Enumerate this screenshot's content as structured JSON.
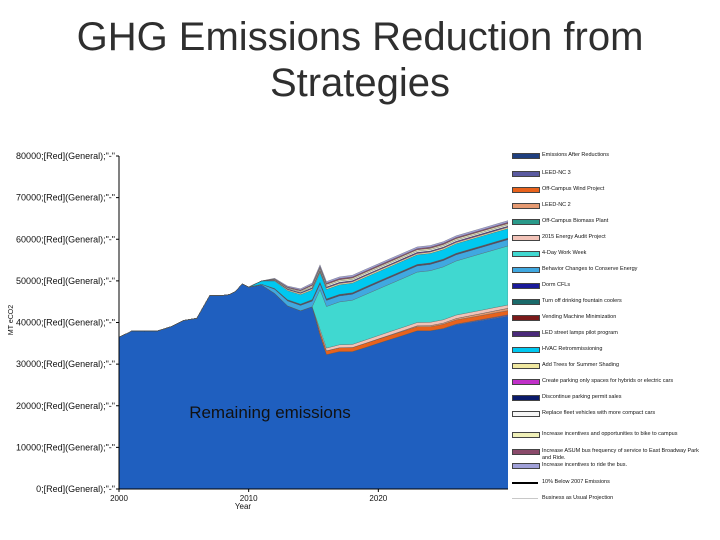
{
  "title": "GHG Emissions Reduction from Strategies",
  "annotation": "Remaining emissions",
  "chart_data": {
    "type": "area",
    "xlabel": "Year",
    "ylabel": "MT eCO2",
    "xlim": [
      2000,
      2030
    ],
    "ylim": [
      0,
      80000
    ],
    "x_ticks": [
      2000,
      2010,
      2020
    ],
    "y_ticks": [
      {
        "value": 0,
        "label": "0;[Red](General);\"-\""
      },
      {
        "value": 10000,
        "label": "10000;[Red](General);\"-\""
      },
      {
        "value": 20000,
        "label": "20000;[Red](General);\"-\""
      },
      {
        "value": 30000,
        "label": "30000;[Red](General);\"-\""
      },
      {
        "value": 40000,
        "label": "40000;[Red](General);\"-\""
      },
      {
        "value": 50000,
        "label": "50000;[Red](General);\"-\""
      },
      {
        "value": 60000,
        "label": "60000;[Red](General);\"-\""
      },
      {
        "value": 70000,
        "label": "70000;[Red](General);\"-\""
      },
      {
        "value": 80000,
        "label": "80000;[Red](General);\"-\""
      }
    ],
    "x": [
      2000,
      2000.7,
      2001,
      2002,
      2003,
      2004,
      2005,
      2006,
      2007,
      2008,
      2008.5,
      2009,
      2009.5,
      2010,
      2011,
      2012,
      2013,
      2014,
      2014.9,
      2015.5,
      2016,
      2017,
      2018,
      2019,
      2020,
      2021,
      2022,
      2023,
      2024,
      2025,
      2026,
      2027,
      2028,
      2029,
      2030
    ],
    "remaining": [
      36500,
      37500,
      38000,
      38000,
      38000,
      39000,
      40500,
      41000,
      46500,
      46500,
      46700,
      47500,
      49300,
      48500,
      49000,
      47000,
      44000,
      42800,
      43800,
      37000,
      32300,
      33000,
      33000,
      34000,
      35000,
      36000,
      37000,
      38000,
      38000,
      38500,
      39500,
      40000,
      40500,
      41000,
      41500
    ],
    "series": [
      {
        "name": "Emissions After Reductions",
        "color": "#1f5fbf",
        "swatch": "#1f3f7f",
        "values": null
      },
      {
        "name": "LEED-NC 3",
        "color": "#5a5aa0",
        "values": [
          0,
          0,
          0,
          0,
          0,
          0,
          0,
          0,
          0,
          0,
          0,
          0,
          0,
          0,
          0,
          0,
          0,
          0,
          0,
          0,
          0,
          0,
          0,
          0,
          0,
          0,
          0,
          0,
          0,
          60,
          120,
          180,
          240,
          300,
          360
        ]
      },
      {
        "name": "Off-Campus Wind Project",
        "color": "#e8621c",
        "values": [
          0,
          0,
          0,
          0,
          0,
          0,
          0,
          0,
          0,
          0,
          0,
          0,
          0,
          0,
          0,
          0,
          0,
          0,
          0,
          800,
          900,
          950,
          1000,
          1000,
          1000,
          1000,
          1000,
          1000,
          1000,
          1000,
          1000,
          1000,
          1000,
          1000,
          1000
        ]
      },
      {
        "name": "LEED-NC 2",
        "color": "#e59a72",
        "values": [
          0,
          0,
          0,
          0,
          0,
          0,
          0,
          0,
          0,
          0,
          0,
          0,
          0,
          0,
          0,
          0,
          0,
          0,
          0,
          0,
          0,
          0,
          0,
          0,
          50,
          100,
          150,
          200,
          250,
          300,
          350,
          400,
          450,
          500,
          550
        ]
      },
      {
        "name": "Off-Campus Biomass Plant",
        "color": "#2a9a8a",
        "values": [
          0,
          0,
          0,
          0,
          0,
          0,
          0,
          0,
          0,
          0,
          0,
          0,
          0,
          0,
          0,
          0,
          0,
          0,
          0,
          0,
          0,
          0,
          0,
          0,
          0,
          0,
          0,
          0,
          0,
          0,
          0,
          0,
          0,
          0,
          0
        ]
      },
      {
        "name": "2015 Energy Audit Project",
        "color": "#f2c3b8",
        "values": [
          0,
          0,
          0,
          0,
          0,
          0,
          0,
          0,
          0,
          0,
          0,
          0,
          0,
          0,
          0,
          0,
          0,
          0,
          0,
          600,
          650,
          700,
          750,
          800,
          800,
          800,
          800,
          800,
          800,
          800,
          800,
          800,
          800,
          800,
          800
        ]
      },
      {
        "name": "4-Day Work Week",
        "color": "#40d8d0",
        "values": [
          0,
          0,
          0,
          0,
          0,
          0,
          0,
          0,
          0,
          0,
          0,
          0,
          0,
          0,
          0,
          0,
          0,
          0,
          0,
          9500,
          10000,
          10300,
          10600,
          10900,
          11200,
          11500,
          11800,
          12100,
          12400,
          12700,
          13000,
          13300,
          13600,
          13900,
          14200
        ]
      },
      {
        "name": "Behavior Changes to Conserve Energy",
        "color": "#40a8e0",
        "values": [
          0,
          0,
          0,
          0,
          0,
          0,
          0,
          0,
          0,
          0,
          0,
          0,
          0,
          0,
          200,
          1000,
          1200,
          1300,
          1350,
          1400,
          1450,
          1450,
          1450,
          1500,
          1500,
          1500,
          1500,
          1500,
          1500,
          1500,
          1500,
          1500,
          1500,
          1500,
          1500
        ]
      },
      {
        "name": "Dorm CFLs",
        "color": "#1a1a9a",
        "values": [
          0,
          0,
          0,
          0,
          0,
          0,
          0,
          0,
          0,
          0,
          0,
          0,
          0,
          0,
          0,
          60,
          90,
          100,
          110,
          120,
          120,
          120,
          120,
          120,
          120,
          120,
          120,
          120,
          120,
          120,
          120,
          120,
          120,
          120,
          120
        ]
      },
      {
        "name": "Turn off drinking fountain coolers",
        "color": "#1a6a6a",
        "values": [
          0,
          0,
          0,
          0,
          0,
          0,
          0,
          0,
          0,
          0,
          0,
          0,
          0,
          0,
          0,
          40,
          60,
          70,
          80,
          80,
          80,
          80,
          80,
          80,
          80,
          80,
          80,
          80,
          80,
          80,
          80,
          80,
          80,
          80,
          80
        ]
      },
      {
        "name": "Vending Machine Minimization",
        "color": "#7a1a1a",
        "values": [
          0,
          0,
          0,
          0,
          0,
          0,
          0,
          0,
          0,
          0,
          0,
          0,
          0,
          0,
          0,
          40,
          60,
          70,
          80,
          80,
          80,
          80,
          80,
          80,
          80,
          80,
          80,
          80,
          80,
          80,
          80,
          80,
          80,
          80,
          80
        ]
      },
      {
        "name": "LED street lamps pilot program",
        "color": "#4a2a7a",
        "values": [
          0,
          0,
          0,
          0,
          0,
          0,
          0,
          0,
          0,
          0,
          0,
          0,
          0,
          0,
          0,
          40,
          60,
          70,
          80,
          80,
          80,
          80,
          80,
          80,
          80,
          80,
          80,
          80,
          80,
          80,
          80,
          80,
          80,
          80,
          80
        ]
      },
      {
        "name": "HVAC Retrommissioning",
        "color": "#00c8f0",
        "values": [
          0,
          0,
          0,
          0,
          0,
          0,
          0,
          0,
          0,
          0,
          0,
          0,
          0,
          0,
          800,
          1800,
          2200,
          2300,
          2300,
          2300,
          2300,
          2300,
          2300,
          2300,
          2300,
          2300,
          2300,
          2300,
          2300,
          2300,
          2300,
          2300,
          2300,
          2300,
          2300
        ]
      },
      {
        "name": "Add Trees for Summer Shading",
        "color": "#f0e8a0",
        "values": [
          0,
          0,
          0,
          0,
          0,
          0,
          0,
          0,
          0,
          0,
          0,
          0,
          0,
          0,
          0,
          100,
          200,
          250,
          300,
          300,
          300,
          300,
          300,
          300,
          300,
          300,
          300,
          300,
          300,
          300,
          300,
          300,
          300,
          300,
          300
        ]
      },
      {
        "name": "Create parking only spaces for hybrids or electric cars",
        "color": "#c030c8",
        "values": [
          0,
          0,
          0,
          0,
          0,
          0,
          0,
          0,
          0,
          0,
          0,
          0,
          0,
          0,
          0,
          60,
          100,
          120,
          140,
          150,
          150,
          150,
          150,
          150,
          150,
          150,
          150,
          150,
          150,
          150,
          150,
          150,
          150,
          150,
          150
        ]
      },
      {
        "name": "Discontinue parking permit sales",
        "color": "#0a1a6a",
        "values": [
          0,
          0,
          0,
          0,
          0,
          0,
          0,
          0,
          0,
          0,
          0,
          0,
          0,
          0,
          0,
          60,
          100,
          120,
          140,
          150,
          150,
          150,
          150,
          150,
          150,
          150,
          150,
          150,
          150,
          150,
          150,
          150,
          150,
          150,
          150
        ]
      },
      {
        "name": "Replace fleet vehicles with more compact cars",
        "color": "#f6f6f6",
        "values": [
          0,
          0,
          0,
          0,
          0,
          0,
          0,
          0,
          0,
          0,
          0,
          0,
          0,
          0,
          0,
          100,
          150,
          200,
          250,
          300,
          300,
          300,
          300,
          300,
          300,
          300,
          300,
          300,
          300,
          300,
          300,
          300,
          300,
          300,
          300
        ]
      },
      {
        "name": "Increase incentives and opportunities to bike to campus",
        "color": "#f0f0b8",
        "values": [
          0,
          0,
          0,
          0,
          0,
          0,
          0,
          0,
          0,
          0,
          0,
          0,
          0,
          0,
          0,
          100,
          150,
          200,
          250,
          300,
          300,
          300,
          300,
          300,
          300,
          300,
          300,
          300,
          300,
          300,
          300,
          300,
          300,
          300,
          300
        ]
      },
      {
        "name": "Increase ASUM bus frequency of service to East Broadway Park and Ride.",
        "color": "#8a4a6a",
        "values": [
          0,
          0,
          0,
          0,
          0,
          0,
          0,
          0,
          0,
          0,
          0,
          0,
          0,
          0,
          0,
          100,
          150,
          200,
          250,
          300,
          300,
          300,
          300,
          300,
          300,
          300,
          300,
          300,
          300,
          300,
          300,
          300,
          300,
          300,
          300
        ]
      },
      {
        "name": "Increase incentives to ride the bus.",
        "color": "#a0a0d8",
        "values": [
          0,
          0,
          0,
          0,
          0,
          0,
          0,
          0,
          0,
          0,
          0,
          0,
          0,
          0,
          0,
          150,
          250,
          300,
          350,
          400,
          400,
          400,
          400,
          400,
          400,
          400,
          400,
          400,
          400,
          400,
          400,
          400,
          400,
          400,
          400
        ]
      },
      {
        "name": "10% Below 2007 Emissions",
        "color": "#000000",
        "kind": "line",
        "values": null
      },
      {
        "name": "Business as Usual Projection",
        "color": "#c8c8c8",
        "kind": "line",
        "values": null
      }
    ]
  }
}
